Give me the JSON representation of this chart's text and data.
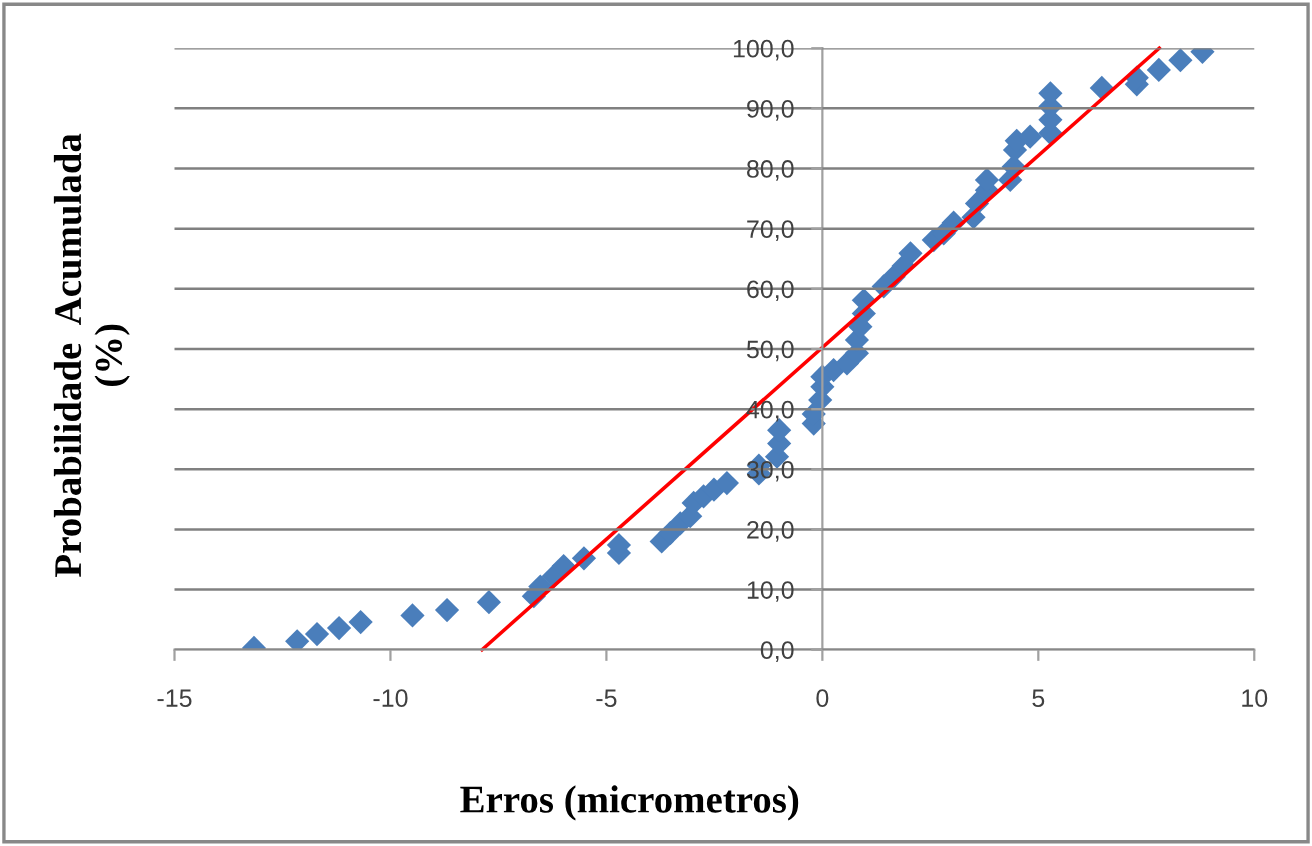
{
  "chart_data": {
    "type": "scatter",
    "xlabel": "Erros (micrometros)",
    "ylabel": "Probabilidade  Acumulada\n(%)",
    "xlim": [
      -15,
      10
    ],
    "xticks": [
      -15,
      -10,
      -5,
      0,
      5,
      10
    ],
    "ylim": [
      0,
      100
    ],
    "yticks": [
      {
        "value": 0,
        "label": "0,0"
      },
      {
        "value": 10,
        "label": "10,0"
      },
      {
        "value": 20,
        "label": "20,0"
      },
      {
        "value": 30,
        "label": "30,0"
      },
      {
        "value": 40,
        "label": "40,0"
      },
      {
        "value": 50,
        "label": "50,0"
      },
      {
        "value": 60,
        "label": "60,0"
      },
      {
        "value": 70,
        "label": "70,0"
      },
      {
        "value": 80,
        "label": "80,0"
      },
      {
        "value": 90,
        "label": "90,0"
      },
      {
        "value": 100,
        "label": "100,0"
      }
    ],
    "grid": "y",
    "legend": false,
    "marker": "diamond",
    "series": [
      {
        "color": "#4a7ebb",
        "x": [
          -13.16,
          -12.16,
          -11.7,
          -11.19,
          -10.69,
          -9.49,
          -8.69,
          -7.72,
          -6.68,
          -6.53,
          -6.22,
          -5.99,
          -5.52,
          -4.71,
          -4.71,
          -3.72,
          -3.52,
          -3.29,
          -3.06,
          -2.98,
          -2.75,
          -2.51,
          -2.21,
          -1.47,
          -1.47,
          -1.05,
          -1.0,
          -1.0,
          -0.2,
          -0.2,
          -0.05,
          0.0,
          0.0,
          0.26,
          0.57,
          0.8,
          0.8,
          0.88,
          0.96,
          0.96,
          1.42,
          1.65,
          1.88,
          2.04,
          2.58,
          2.81,
          3.04,
          3.5,
          3.58,
          3.81,
          3.81,
          4.35,
          4.43,
          4.46,
          4.5,
          4.81,
          5.28,
          5.28,
          5.28,
          5.28,
          6.47,
          7.28,
          7.28,
          7.79,
          8.29,
          8.8
        ],
        "values": [
          0.3,
          1.4,
          2.6,
          3.6,
          4.6,
          5.7,
          6.6,
          7.9,
          8.9,
          10.5,
          12.2,
          13.9,
          15.2,
          16.1,
          17.4,
          18.0,
          19.4,
          21.0,
          22.2,
          24.4,
          25.5,
          26.6,
          27.7,
          29.3,
          30.6,
          32.1,
          34.3,
          36.5,
          37.6,
          39.2,
          41.5,
          43.7,
          45.4,
          46.5,
          47.6,
          49.3,
          51.5,
          53.7,
          55.9,
          58.1,
          60.4,
          62.0,
          63.8,
          65.9,
          68.1,
          69.2,
          71.0,
          71.9,
          74.2,
          76.4,
          78.1,
          78.1,
          80.3,
          83.1,
          84.6,
          85.3,
          85.9,
          88.1,
          90.3,
          92.5,
          93.4,
          94.0,
          95.1,
          96.4,
          98.0,
          99.4
        ]
      },
      {
        "type": "line",
        "marker": "none",
        "color": "#ff0000",
        "x": [
          -7.88,
          7.8
        ],
        "values": [
          0,
          100
        ]
      }
    ]
  }
}
